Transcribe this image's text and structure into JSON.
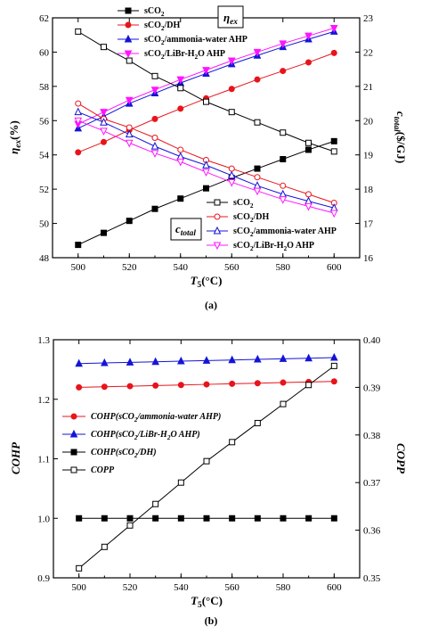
{
  "chart_data": [
    {
      "type": "line",
      "panel_label": "(a)",
      "xlabel": "T5(°C)",
      "xlabel_main": "T",
      "xlabel_sub": "5",
      "xlabel_unit": "(°C)",
      "ylabel_left": "ηex(%)",
      "ylabel_left_main": "η",
      "ylabel_left_sub": "ex",
      "ylabel_left_unit": "(%)",
      "ylabel_right": "ctotal($/GJ)",
      "ylabel_right_main": "c",
      "ylabel_right_sub": "total",
      "ylabel_right_unit": "($/GJ)",
      "xlim": [
        490,
        610
      ],
      "ylim_left": [
        48,
        62
      ],
      "ylim_right": [
        16,
        23
      ],
      "xticks": [
        "500",
        "520",
        "540",
        "560",
        "580",
        "600"
      ],
      "yticks_left": [
        "48",
        "50",
        "52",
        "54",
        "56",
        "58",
        "60",
        "62"
      ],
      "yticks_right": [
        "16",
        "17",
        "18",
        "19",
        "20",
        "21",
        "22",
        "23"
      ],
      "x": [
        500,
        510,
        520,
        530,
        540,
        550,
        560,
        570,
        580,
        590,
        600
      ],
      "annotations": [
        {
          "text": "ηex",
          "main": "η",
          "sub": "ex"
        },
        {
          "text": "ctotal",
          "main": "c",
          "sub": "total"
        }
      ],
      "series": [
        {
          "name": "sCO2",
          "axis": "left",
          "marker": "square-filled",
          "color": "#000000",
          "values": [
            48.75,
            49.45,
            50.15,
            50.85,
            51.45,
            52.05,
            52.65,
            53.2,
            53.75,
            54.3,
            54.8
          ]
        },
        {
          "name": "sCO2/DH",
          "axis": "left",
          "marker": "circle-filled",
          "color": "#e8141b",
          "values": [
            54.15,
            54.75,
            55.45,
            56.1,
            56.7,
            57.3,
            57.85,
            58.4,
            58.9,
            59.4,
            59.95
          ]
        },
        {
          "name": "sCO2/ammonia-water AHP",
          "axis": "left",
          "marker": "triangle-up-filled",
          "color": "#1414d8",
          "values": [
            55.55,
            56.25,
            57.0,
            57.6,
            58.2,
            58.75,
            59.3,
            59.8,
            60.3,
            60.75,
            61.2
          ]
        },
        {
          "name": "sCO2/LiBr-H2O AHP",
          "axis": "left",
          "marker": "triangle-down-filled",
          "color": "#ff14ff",
          "values": [
            55.8,
            56.5,
            57.2,
            57.8,
            58.4,
            58.95,
            59.5,
            60.0,
            60.5,
            60.95,
            61.4
          ]
        },
        {
          "name": "sCO2",
          "axis": "right",
          "marker": "square-open",
          "color": "#000000",
          "values": [
            22.6,
            22.15,
            21.75,
            21.3,
            20.95,
            20.55,
            20.25,
            19.95,
            19.65,
            19.35,
            19.1
          ]
        },
        {
          "name": "sCO2/DH",
          "axis": "right",
          "marker": "circle-open",
          "color": "#e8141b",
          "values": [
            20.5,
            20.05,
            19.8,
            19.5,
            19.15,
            18.85,
            18.6,
            18.35,
            18.1,
            17.85,
            17.6
          ]
        },
        {
          "name": "sCO2/ammonia-water AHP",
          "axis": "right",
          "marker": "triangle-up-open",
          "color": "#1414d8",
          "values": [
            20.25,
            19.95,
            19.6,
            19.25,
            18.95,
            18.7,
            18.4,
            18.1,
            17.85,
            17.65,
            17.45
          ]
        },
        {
          "name": "sCO2/LiBr-H2O AHP",
          "axis": "right",
          "marker": "triangle-down-open",
          "color": "#ff14ff",
          "values": [
            20.0,
            19.7,
            19.35,
            19.05,
            18.8,
            18.5,
            18.2,
            17.95,
            17.7,
            17.5,
            17.3
          ]
        }
      ],
      "legend_top": [
        {
          "main": "sCO",
          "sub": "2",
          "tail": ""
        },
        {
          "main": "sCO",
          "sub": "2",
          "tail": "/DH"
        },
        {
          "main": "sCO",
          "sub": "2",
          "tail": "/ammonia-water AHP"
        },
        {
          "main": "sCO",
          "sub": "2",
          "tail": "/LiBr-H",
          "sub2": "2",
          "tail2": "O AHP"
        }
      ],
      "legend_bottom": [
        {
          "main": "sCO",
          "sub": "2",
          "tail": ""
        },
        {
          "main": "sCO",
          "sub": "2",
          "tail": "/DH"
        },
        {
          "main": "sCO",
          "sub": "2",
          "tail": "/ammonia-water AHP"
        },
        {
          "main": "sCO",
          "sub": "2",
          "tail": "/LiBr-H",
          "sub2": "2",
          "tail2": "O AHP"
        }
      ]
    },
    {
      "type": "line",
      "panel_label": "(b)",
      "xlabel": "T5(°C)",
      "xlabel_main": "T",
      "xlabel_sub": "5",
      "xlabel_unit": "(°C)",
      "ylabel_left": "COHP",
      "ylabel_right": "COPP",
      "xlim": [
        490,
        610
      ],
      "ylim_left": [
        0.9,
        1.3
      ],
      "ylim_right": [
        0.35,
        0.4
      ],
      "xticks": [
        "500",
        "520",
        "540",
        "560",
        "580",
        "600"
      ],
      "yticks_left": [
        "0.9",
        "1.0",
        "1.1",
        "1.2",
        "1.3"
      ],
      "yticks_right": [
        "0.35",
        "0.36",
        "0.37",
        "0.38",
        "0.39",
        "0.40"
      ],
      "x": [
        500,
        510,
        520,
        530,
        540,
        550,
        560,
        570,
        580,
        590,
        600
      ],
      "series": [
        {
          "name": "COHP(sCO2/ammonia-water AHP)",
          "axis": "left",
          "marker": "circle-filled",
          "color": "#e8141b",
          "values": [
            1.22,
            1.221,
            1.222,
            1.223,
            1.224,
            1.225,
            1.226,
            1.227,
            1.228,
            1.229,
            1.23
          ]
        },
        {
          "name": "COHP(sCO2/LiBr-H2O AHP)",
          "axis": "left",
          "marker": "triangle-up-filled",
          "color": "#1414d8",
          "values": [
            1.26,
            1.261,
            1.262,
            1.263,
            1.264,
            1.265,
            1.266,
            1.267,
            1.268,
            1.269,
            1.27
          ]
        },
        {
          "name": "COHP(sCO2/DH)",
          "axis": "left",
          "marker": "square-filled",
          "color": "#000000",
          "values": [
            1.0,
            1.0,
            1.0,
            1.0,
            1.0,
            1.0,
            1.0,
            1.0,
            1.0,
            1.0,
            1.0
          ]
        },
        {
          "name": "COPP",
          "axis": "right",
          "marker": "square-open",
          "color": "#000000",
          "values": [
            0.352,
            0.3565,
            0.361,
            0.3655,
            0.37,
            0.3745,
            0.3785,
            0.3825,
            0.3865,
            0.3905,
            0.3945
          ]
        }
      ],
      "legend": [
        {
          "main": "COHP",
          "tail": "(sCO",
          "sub": "2",
          "tail2": "/ammonia-water AHP)"
        },
        {
          "main": "COHP",
          "tail": "(sCO",
          "sub": "2",
          "tail2": "/LiBr-H",
          "sub2": "2",
          "tail3": "O AHP)"
        },
        {
          "main": "COHP",
          "tail": "(sCO",
          "sub": "2",
          "tail2": "/DH)"
        },
        {
          "main": "COPP",
          "tail": ""
        }
      ]
    }
  ]
}
